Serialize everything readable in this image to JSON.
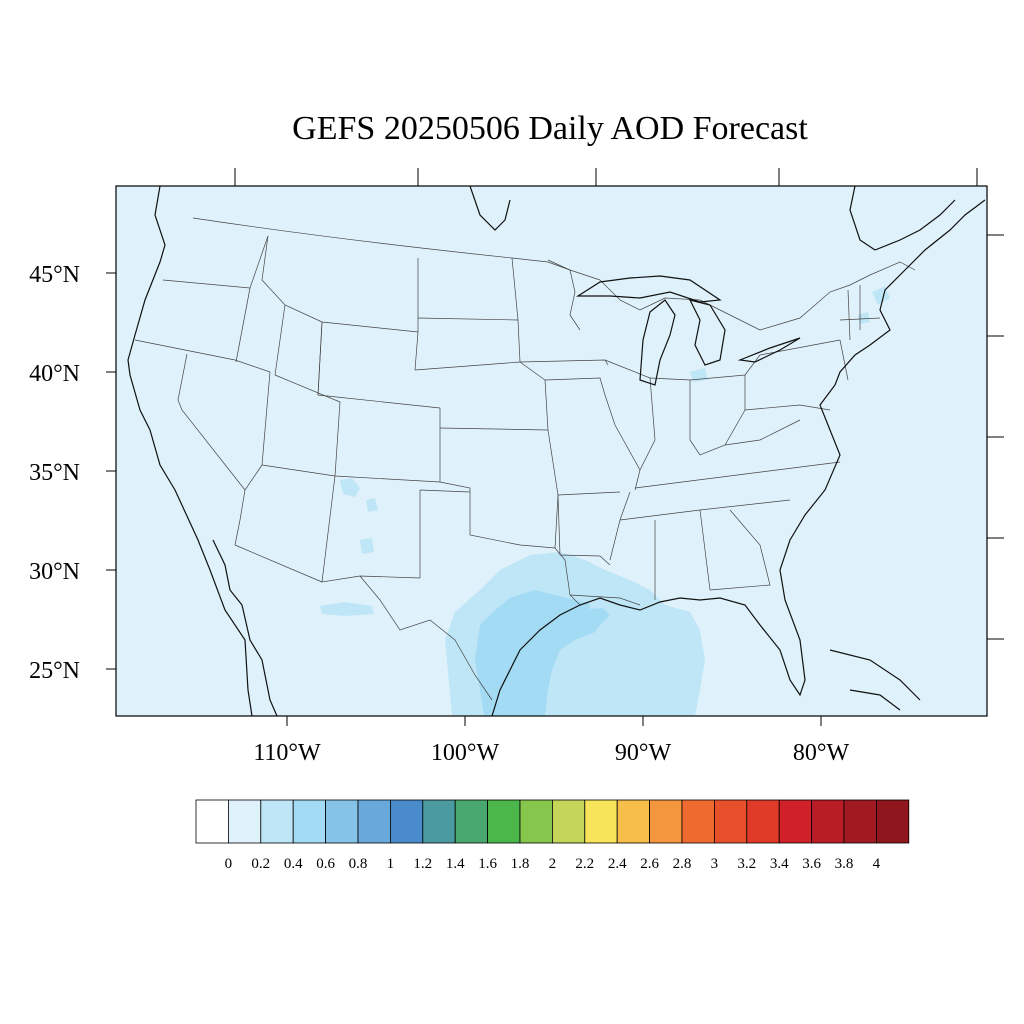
{
  "title": "GEFS 20250506 Daily AOD Forecast",
  "map": {
    "projection": "Lambert-like conic (curved parallels)",
    "extent_lon": [
      -119,
      -71
    ],
    "extent_lat": [
      22.5,
      49.5
    ],
    "background_color": "#dff1fa",
    "lat_ticks": [
      {
        "value": 45,
        "label": "45°N"
      },
      {
        "value": 40,
        "label": "40°N"
      },
      {
        "value": 35,
        "label": "35°N"
      },
      {
        "value": 30,
        "label": "30°N"
      },
      {
        "value": 25,
        "label": "25°N"
      }
    ],
    "lon_ticks": [
      {
        "value": -110,
        "label": "110°W"
      },
      {
        "value": -100,
        "label": "100°W"
      },
      {
        "value": -90,
        "label": "90°W"
      },
      {
        "value": -80,
        "label": "80°W"
      }
    ],
    "aod_regions": [
      {
        "name": "gulf-haze",
        "level": "0.2-0.4",
        "color": "#bfe6f7"
      },
      {
        "name": "texas-coast-plume",
        "level": "0.4-0.6",
        "color": "#a3dbf4"
      },
      {
        "name": "new-mexico-patches",
        "level": "0.2-0.4",
        "color": "#bfe6f7"
      },
      {
        "name": "northeast-patches",
        "level": "0.2-0.4",
        "color": "#bfe6f7"
      }
    ]
  },
  "colorbar": {
    "labels": [
      "0",
      "0.2",
      "0.4",
      "0.6",
      "0.8",
      "1",
      "1.2",
      "1.4",
      "1.6",
      "1.8",
      "2",
      "2.2",
      "2.4",
      "2.6",
      "2.8",
      "3",
      "3.2",
      "3.4",
      "3.6",
      "3.8",
      "4"
    ],
    "colors": [
      "#ffffff",
      "#dff1fa",
      "#bfe6f7",
      "#a3dbf4",
      "#85c3e8",
      "#69a8db",
      "#4a8ccb",
      "#4a9aa0",
      "#48a86f",
      "#4bb64a",
      "#86c64c",
      "#c4d55a",
      "#f7e45a",
      "#f7bf4a",
      "#f4963d",
      "#ef6a2e",
      "#e8502b",
      "#e03a28",
      "#d02028",
      "#b81c25",
      "#a11a22",
      "#8e161c"
    ]
  }
}
